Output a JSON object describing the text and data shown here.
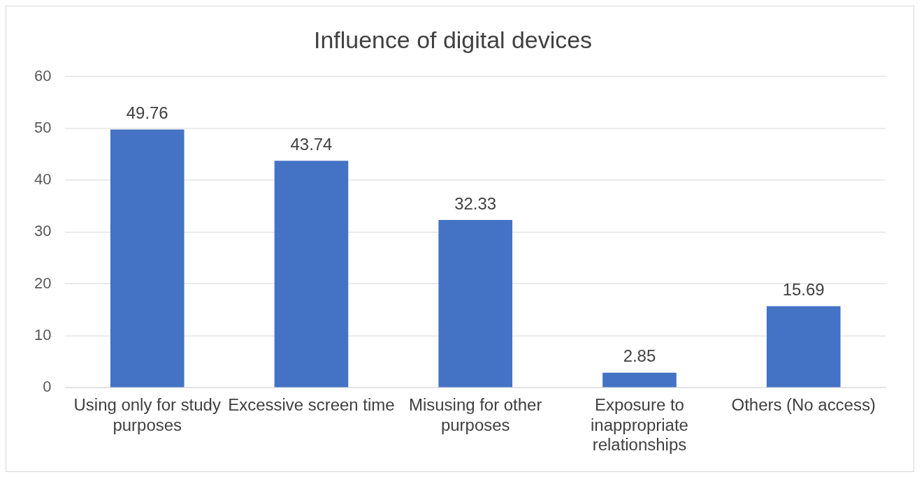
{
  "chart_data": {
    "type": "bar",
    "title": "Influence of digital devices",
    "categories": [
      "Using only for study purposes",
      "Excessive screen time",
      "Misusing for other purposes",
      "Exposure to inappropriate relationships",
      "Others (No access)"
    ],
    "values": [
      49.76,
      43.74,
      32.33,
      2.85,
      15.69
    ],
    "color": "#4472c4",
    "ylim": [
      0,
      60
    ],
    "yticks": [
      0,
      10,
      20,
      30,
      40,
      50,
      60
    ],
    "grid": "y",
    "data_labels": true,
    "legend": false
  }
}
